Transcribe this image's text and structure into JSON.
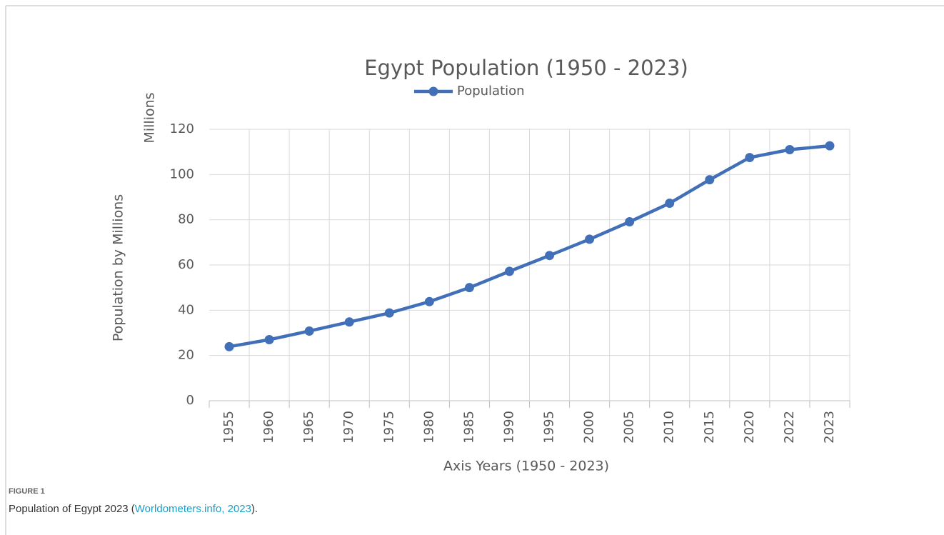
{
  "chart_data": {
    "type": "line",
    "title": "Egypt Population (1950 - 2023)",
    "y_unit_label": "Millions",
    "y_label": "Population by Millions",
    "x_label": "Axis Years (1950 - 2023)",
    "categories": [
      "1955",
      "1960",
      "1965",
      "1970",
      "1975",
      "1980",
      "1985",
      "1990",
      "1995",
      "2000",
      "2005",
      "2010",
      "2015",
      "2020",
      "2022",
      "2023"
    ],
    "series": [
      {
        "name": "Population",
        "color": "#4270b8",
        "values": [
          23.9,
          27.0,
          30.8,
          34.8,
          38.8,
          43.8,
          50.0,
          57.2,
          64.2,
          71.4,
          79.1,
          87.3,
          97.7,
          107.5,
          111.0,
          112.7
        ]
      }
    ],
    "ylim": [
      0,
      120
    ],
    "yticks": [
      0,
      20,
      40,
      60,
      80,
      100,
      120
    ],
    "grid": true,
    "legend": "top"
  },
  "caption": {
    "label": "FIGURE 1",
    "text_before": "Population of Egypt 2023 (",
    "link": "Worldometers.info, 2023",
    "text_after": ")."
  }
}
